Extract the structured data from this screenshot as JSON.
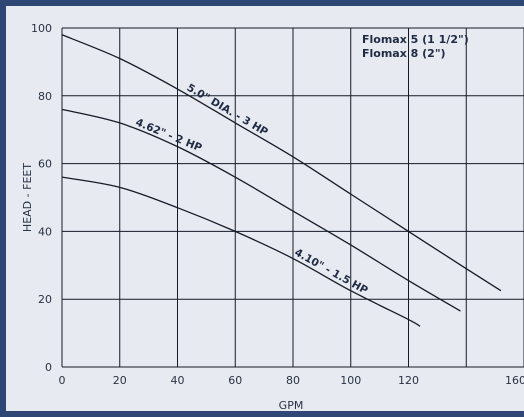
{
  "chart_data": {
    "type": "line",
    "xlabel": "GPM",
    "ylabel": "HEAD - FEET",
    "xlim": [
      0,
      160
    ],
    "ylim": [
      0,
      100
    ],
    "x_ticks": [
      0,
      20,
      40,
      60,
      80,
      100,
      120,
      160
    ],
    "y_ticks": [
      0,
      20,
      40,
      60,
      80,
      100
    ],
    "grid": true,
    "legend_position": "top-right",
    "legend_lines": [
      "Flomax 5 (1 1/2\")",
      "Flomax 8 (2\")"
    ],
    "series": [
      {
        "name": "5.0\" DIA. - 3 HP",
        "x": [
          0,
          20,
          40,
          60,
          80,
          100,
          120,
          140,
          152
        ],
        "y": [
          98,
          91,
          82,
          72,
          62,
          51,
          40,
          29,
          22.5
        ]
      },
      {
        "name": "4.62\" - 2 HP",
        "x": [
          0,
          20,
          40,
          60,
          80,
          100,
          120,
          138
        ],
        "y": [
          76,
          72,
          65,
          56,
          46,
          36,
          25.5,
          16.5
        ]
      },
      {
        "name": "4.10\" - 1.5 HP",
        "x": [
          0,
          20,
          40,
          60,
          80,
          100,
          120,
          124
        ],
        "y": [
          56,
          53,
          47,
          40,
          32,
          22.5,
          14,
          12
        ]
      }
    ]
  }
}
